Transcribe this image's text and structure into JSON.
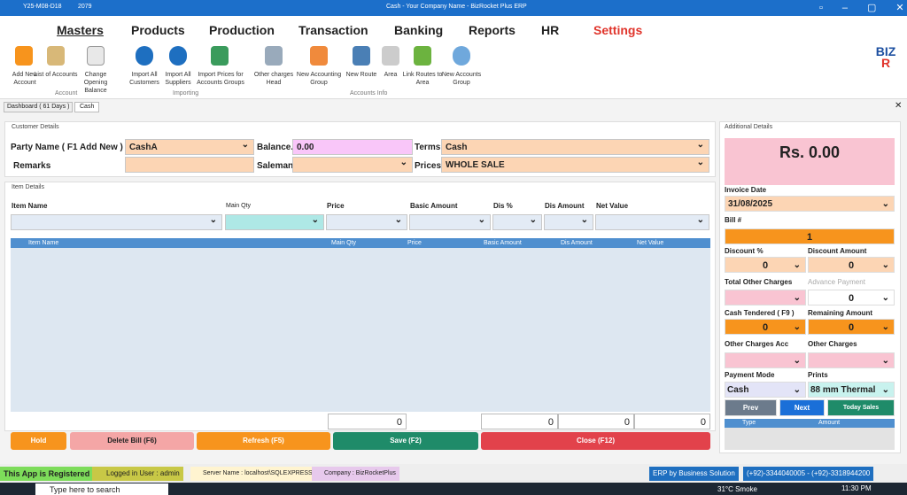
{
  "title_bar": {
    "date_code": "Y25-M08-D18",
    "number": "2079",
    "title": "Cash - Your Company Name - BizRocket Plus ERP"
  },
  "menu": [
    "Masters",
    "Products",
    "Production",
    "Transaction",
    "Banking",
    "Reports",
    "HR",
    "Settings"
  ],
  "ribbon": {
    "groups": [
      {
        "label": "Account",
        "buttons": [
          "Add New Account",
          "List of Accounts",
          "Change Opening Balance"
        ]
      },
      {
        "label": "Importing",
        "buttons": [
          "Import All Customers",
          "Import All Suppliers",
          "Import Prices for Accounts Groups"
        ]
      },
      {
        "label": "Accounts Info",
        "buttons": [
          "Other charges Head",
          "New Accounting Group",
          "New Route",
          "Area",
          "Link Routes to Area",
          "New Accounts Group"
        ]
      }
    ]
  },
  "tabs": [
    "Dashboard ( 61 Days )",
    "Cash"
  ],
  "customer_details": {
    "title": "Customer Details",
    "party_name_label": "Party Name ( F1 Add New )",
    "party_name": "CashA",
    "balance_label": "Balance.",
    "balance": "0.00",
    "terms_label": "Terms",
    "terms": "Cash",
    "remarks_label": "Remarks",
    "saleman_label": "Saleman",
    "prices_label": "Prices",
    "prices": "WHOLE SALE"
  },
  "item_details": {
    "title": "Item Details",
    "fields": [
      "Item Name",
      "Main Qty",
      "Price",
      "Basic Amount",
      "Dis %",
      "Dis Amount",
      "Net Value"
    ],
    "grid_columns": [
      "Item Name",
      "Main Qty",
      "Price",
      "Basic Amount",
      "Dis Amount",
      "Net Value"
    ],
    "totals": [
      "0",
      "0",
      "0",
      "0"
    ]
  },
  "actions": [
    "Hold",
    "Delete Bill (F6)",
    "Refresh (F5)",
    "Save (F2)",
    "Close (F12)"
  ],
  "additional_details": {
    "title": "Additional Details",
    "total": "Rs. 0.00",
    "invoice_date_label": "Invoice Date",
    "invoice_date": "31/08/2025",
    "bill_label": "Bill #",
    "bill": "1",
    "discount_pct_label": "Discount %",
    "discount_pct": "0",
    "discount_amount_label": "Discount Amount",
    "discount_amount": "0",
    "total_other_charges_label": "Total Other Charges",
    "advance_payment_label": "Advance Payment",
    "advance_payment": "0",
    "cash_tendered_label": "Cash Tendered ( F9 )",
    "cash_tendered": "0",
    "remaining_amount_label": "Remaining Amount",
    "remaining_amount": "0",
    "other_charges_acc_label": "Other Charges Acc",
    "other_charges_label": "Other Charges",
    "payment_mode_label": "Payment Mode",
    "payment_mode": "Cash",
    "prints_label": "Prints",
    "prints": "88 mm Thermal",
    "prev": "Prev",
    "next": "Next",
    "today_sales": "Today Sales",
    "type_col": "Type",
    "amount_col": "Amount"
  },
  "status_bar": {
    "registered": "This App is Registered",
    "user": "Logged in User : admin",
    "server": "Server Name : localhost\\SQLEXPRESS",
    "company": "Company : BizRocketPlus",
    "erp": "ERP  by Business Solution",
    "phones": "(+92)-3344040005 - (+92)-3318944200"
  },
  "taskbar": {
    "search": "Type here to search",
    "weather": "31°C  Smoke",
    "time": "11:30 PM"
  }
}
